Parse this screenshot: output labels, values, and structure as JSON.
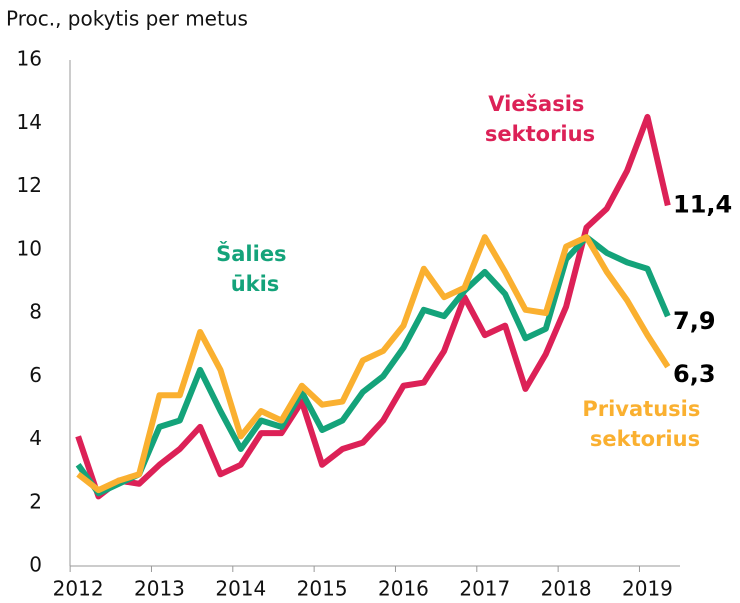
{
  "chart_data": {
    "type": "line",
    "title": "Proc., pokytis per metus",
    "x": [
      2012,
      2012.25,
      2012.5,
      2012.75,
      2013,
      2013.25,
      2013.5,
      2013.75,
      2014,
      2014.25,
      2014.5,
      2014.75,
      2015,
      2015.25,
      2015.5,
      2015.75,
      2016,
      2016.25,
      2016.5,
      2016.75,
      2017,
      2017.25,
      2017.5,
      2017.75,
      2018,
      2018.25,
      2018.5,
      2018.75,
      2019,
      2019.25
    ],
    "xlim": [
      2011.9,
      2019.4
    ],
    "xticks": [
      2012,
      2013,
      2014,
      2015,
      2016,
      2017,
      2018,
      2019
    ],
    "ylim": [
      0,
      16
    ],
    "yticks": [
      0,
      2,
      4,
      6,
      8,
      10,
      12,
      14,
      16
    ],
    "series": [
      {
        "name": "Viešasis sektorius",
        "color": "#dc2157",
        "end_label": "11,4",
        "values": [
          4.1,
          2.2,
          2.7,
          2.6,
          3.2,
          3.7,
          4.4,
          2.9,
          3.2,
          4.2,
          4.2,
          5.2,
          3.2,
          3.7,
          3.9,
          4.6,
          5.7,
          5.8,
          6.8,
          8.5,
          7.3,
          7.6,
          5.6,
          6.7,
          8.2,
          10.7,
          11.3,
          12.5,
          14.2,
          11.4
        ]
      },
      {
        "name": "Šalies ūkis",
        "color": "#14a37a",
        "end_label": "7,9",
        "values": [
          3.2,
          2.3,
          2.6,
          2.9,
          4.4,
          4.6,
          6.2,
          4.9,
          3.7,
          4.6,
          4.4,
          5.5,
          4.3,
          4.6,
          5.5,
          6.0,
          6.9,
          8.1,
          7.9,
          8.7,
          9.3,
          8.6,
          7.2,
          7.5,
          9.7,
          10.4,
          9.9,
          9.6,
          9.4,
          7.9
        ]
      },
      {
        "name": "Privatusis sektorius",
        "color": "#fab030",
        "end_label": "6,3",
        "values": [
          2.9,
          2.4,
          2.7,
          2.9,
          5.4,
          5.4,
          7.4,
          6.2,
          4.1,
          4.9,
          4.6,
          5.7,
          5.1,
          5.2,
          6.5,
          6.8,
          7.6,
          9.4,
          8.5,
          8.8,
          10.4,
          9.3,
          8.1,
          8.0,
          10.1,
          10.4,
          9.3,
          8.4,
          7.3,
          6.3
        ]
      }
    ]
  }
}
